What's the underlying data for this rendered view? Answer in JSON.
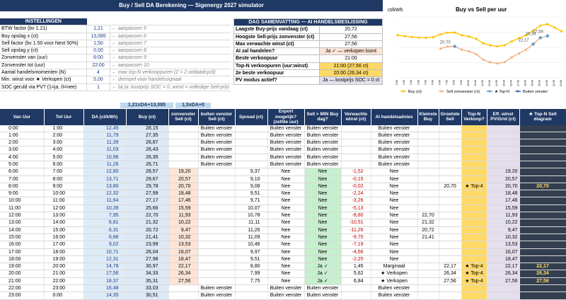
{
  "title": "Buy / Sell DA Berekening — Sigenergy 2027 simulator",
  "settings": {
    "header": "INSTELLINGEN",
    "rows": [
      {
        "label": "BTW factor (bv 1.21)",
        "value": "1,21",
        "note": "← aanpassen 5"
      },
      {
        "label": "Buy opslag x (ct)",
        "value": "13,085",
        "note": "← aanpassen 6"
      },
      {
        "label": "Sell factor (bv 1.50 voor Next 50%)",
        "value": "1,50",
        "note": "← aanpassen 7"
      },
      {
        "label": "Sell opslag y (ct)",
        "value": "0,00",
        "note": "← aanpassen 8"
      },
      {
        "label": "Zonvenster van (uur)",
        "value": "6:00",
        "note": "← aanpassen 9"
      },
      {
        "label": "Zonvenster tot (uur)",
        "value": "22:00",
        "note": "← aanpassen 10"
      },
      {
        "label": "Aantal handelsmomenten (N)",
        "value": "4",
        "note": "← max top-N verkooppuren (2 = 2 ontlaadcycli)"
      },
      {
        "label": "Min. winst voor ★ Verkopen (ct)",
        "value": "5,00",
        "note": "← drempel voor handelssignaal"
      },
      {
        "label": "SOC geruld via PV? (1=ja, 0=nee)",
        "value": "1",
        "note": "← bij ja: kostprijs SOC = 0, winst = volledige Sell-prijs"
      }
    ]
  },
  "summary": {
    "header": "DAG SAMENVATTING — AI HANDELSBESLISSING",
    "rows": [
      {
        "label": "Laagste Buy-prijs vandaag (ct)",
        "value": "20,72"
      },
      {
        "label": "Hoogste Sell-prijs zonvenster (ct)",
        "value": "27,56"
      },
      {
        "label": "Max verwachte winst (ct)",
        "value": "27,56"
      },
      {
        "label": "AI zal handelen?",
        "value": "Ja ✓ — verkopen loont"
      },
      {
        "label": "Beste verkoopuur",
        "value": "21:00"
      },
      {
        "label": "Top-N verkoopuren (uur:winst)",
        "value": "21:00 (27,56 ct)"
      },
      {
        "label": "2e beste verkoopuur",
        "value": "20:00 (26,34 ct)"
      },
      {
        "label": "PV modus actief?",
        "value": "Ja — kostprijs SOC = 0 ct"
      }
    ]
  },
  "subheaders": {
    "da": "1,21xDA+13,085",
    "sell": "1,5xDA+0"
  },
  "columns": [
    "Van Uur",
    "Tot Uur",
    "DA (ct/kWh)",
    "Buy (ct)",
    "zonvenster Sell (ct)",
    "buiten venster Sell (ct)",
    "Spread (ct)",
    "Export mogelijk? (zelfde uur)",
    "Sell > MIN Buy dag?",
    "Verwachte winst (ct)",
    "AI handelsadvies",
    "Kleinste Buy",
    "Grootste Sell",
    "Top-N Verkoop?",
    "Eff. winst PV/Grid (ct)",
    "★ Top-N Sell diagram"
  ],
  "rows": [
    [
      "0:00",
      "1:00",
      "12,45",
      "28,15",
      "",
      "Buiten venster",
      "",
      "Buiten venster",
      "Buiten venster",
      "",
      "Buiten venster",
      "",
      "",
      "",
      "",
      ""
    ],
    [
      "1:00",
      "2:00",
      "11,79",
      "27,35",
      "",
      "Buiten venster",
      "",
      "Buiten venster",
      "Buiten venster",
      "",
      "Buiten venster",
      "",
      "",
      "",
      "",
      ""
    ],
    [
      "2:00",
      "3:00",
      "11,39",
      "26,87",
      "",
      "Buiten venster",
      "",
      "Buiten venster",
      "Buiten venster",
      "",
      "Buiten venster",
      "",
      "",
      "",
      "",
      ""
    ],
    [
      "3:00",
      "4:00",
      "11,03",
      "26,43",
      "",
      "Buiten venster",
      "",
      "Buiten venster",
      "Buiten venster",
      "",
      "Buiten venster",
      "",
      "",
      "",
      "",
      ""
    ],
    [
      "4:00",
      "5:00",
      "10,96",
      "26,35",
      "",
      "Buiten venster",
      "",
      "Buiten venster",
      "Buiten venster",
      "",
      "Buiten venster",
      "",
      "",
      "",
      "",
      ""
    ],
    [
      "5:00",
      "6:00",
      "11,26",
      "26,71",
      "",
      "Buiten venster",
      "",
      "Buiten venster",
      "Buiten venster",
      "",
      "Buiten venster",
      "",
      "",
      "",
      "",
      ""
    ],
    [
      "6:00",
      "7:00",
      "12,80",
      "28,57",
      "19,20",
      "",
      "9,37",
      "Nee",
      "Nee",
      "-1,52",
      "Nee",
      "",
      "",
      "",
      "19,20",
      ""
    ],
    [
      "7:00",
      "8:00",
      "13,71",
      "29,67",
      "20,57",
      "",
      "9,10",
      "Nee",
      "Nee",
      "-0,15",
      "Nee",
      "",
      "",
      "",
      "20,57",
      ""
    ],
    [
      "8:00",
      "9:00",
      "13,80",
      "29,78",
      "20,70",
      "",
      "9,08",
      "Nee",
      "Nee",
      "-0,02",
      "Nee",
      "",
      "20,70",
      "★ Top-4",
      "20,70",
      "20,70"
    ],
    [
      "9:00",
      "10:00",
      "12,32",
      "27,99",
      "18,48",
      "",
      "9,51",
      "Nee",
      "Nee",
      "-2,24",
      "Nee",
      "",
      "",
      "",
      "18,48",
      ""
    ],
    [
      "10:00",
      "11:00",
      "11,64",
      "27,17",
      "17,46",
      "",
      "9,71",
      "Nee",
      "Nee",
      "-3,26",
      "Nee",
      "",
      "",
      "",
      "17,46",
      ""
    ],
    [
      "11:00",
      "12:00",
      "10,39",
      "25,66",
      "15,59",
      "",
      "10,07",
      "Nee",
      "Nee",
      "-5,13",
      "Nee",
      "",
      "",
      "",
      "15,59",
      ""
    ],
    [
      "12:00",
      "13:00",
      "7,95",
      "22,70",
      "11,93",
      "",
      "10,78",
      "Nee",
      "Nee",
      "-8,80",
      "Nee",
      "22,70",
      "",
      "",
      "11,93",
      ""
    ],
    [
      "13:00",
      "14:00",
      "6,81",
      "21,32",
      "10,22",
      "",
      "11,11",
      "Nee",
      "Nee",
      "-10,51",
      "Nee",
      "21,32",
      "",
      "",
      "10,22",
      ""
    ],
    [
      "14:00",
      "15:00",
      "6,31",
      "20,72",
      "9,47",
      "",
      "11,26",
      "Nee",
      "Nee",
      "-11,26",
      "Nee",
      "20,72",
      "",
      "",
      "9,47",
      ""
    ],
    [
      "15:00",
      "16:00",
      "6,88",
      "21,41",
      "10,32",
      "",
      "11,09",
      "Nee",
      "Nee",
      "-9,70",
      "Nee",
      "21,41",
      "",
      "",
      "10,32",
      ""
    ],
    [
      "16:00",
      "17:00",
      "9,02",
      "23,99",
      "13,53",
      "",
      "10,46",
      "Nee",
      "Nee",
      "-7,19",
      "Nee",
      "",
      "",
      "",
      "13,53",
      ""
    ],
    [
      "17:00",
      "18:00",
      "10,71",
      "26,04",
      "16,07",
      "",
      "9,97",
      "Nee",
      "Nee",
      "-4,66",
      "Nee",
      "",
      "",
      "",
      "16,07",
      ""
    ],
    [
      "18:00",
      "19:00",
      "12,31",
      "27,98",
      "18,47",
      "",
      "9,51",
      "Nee",
      "Nee",
      "-2,25",
      "Nee",
      "",
      "",
      "",
      "18,47",
      ""
    ],
    [
      "19:00",
      "20:00",
      "14,78",
      "30,97",
      "22,17",
      "",
      "8,80",
      "Nee",
      "Ja ✓",
      "1,45",
      "Marginaal",
      "",
      "22,17",
      "★ Top-4",
      "22,17",
      "22,17"
    ],
    [
      "20:00",
      "21:00",
      "17,56",
      "34,33",
      "26,34",
      "",
      "7,99",
      "Nee",
      "Ja ✓",
      "5,62",
      "★ Verkopen",
      "",
      "26,34",
      "★ Top-4",
      "26,34",
      "26,34"
    ],
    [
      "21:00",
      "22:00",
      "18,37",
      "35,31",
      "27,56",
      "",
      "7,75",
      "Nee",
      "Ja ✓",
      "6,84",
      "★ Verkopen",
      "",
      "27,56",
      "★ Top-4",
      "27,56",
      "27,56"
    ],
    [
      "22:00",
      "23:00",
      "16,48",
      "33,03",
      "",
      "Buiten venster",
      "",
      "Buiten venster",
      "Buiten venster",
      "",
      "Buiten venster",
      "",
      "",
      "",
      "",
      ""
    ],
    [
      "23:00",
      "0:00",
      "14,35",
      "30,51",
      "",
      "Buiten venster",
      "",
      "Buiten venster",
      "Buiten venster",
      "",
      "Buiten venster",
      "",
      "",
      "",
      "",
      ""
    ]
  ],
  "chart": {
    "title": "Buy vs Sell per uur",
    "ylabel": "ct/kWh",
    "legend": [
      "Buy (ct)",
      "Sell zonvenster (ct)",
      "★ Top-N",
      "Buiten venster"
    ],
    "colors": {
      "buy": "#ffc000",
      "sell": "#f4b183",
      "topn": "#5b9bd5",
      "bui": "#4472c4"
    },
    "labels": [
      "20,70",
      "22,17",
      "26,34",
      "27,56"
    ]
  },
  "chart_data": {
    "type": "line",
    "title": "Buy vs Sell per uur",
    "ylabel": "ct/kWh",
    "x": [
      "0:00",
      "1:00",
      "2:00",
      "3:00",
      "4:00",
      "5:00",
      "6:00",
      "7:00",
      "8:00",
      "9:00",
      "10:00",
      "11:00",
      "12:00",
      "13:00",
      "14:00",
      "15:00",
      "16:00",
      "17:00",
      "18:00",
      "19:00",
      "20:00",
      "21:00",
      "22:00",
      "23:00"
    ],
    "series": [
      {
        "name": "Buy (ct)",
        "values": [
          28.15,
          27.35,
          26.87,
          26.43,
          26.35,
          26.71,
          28.57,
          29.67,
          29.78,
          27.99,
          27.17,
          25.66,
          22.7,
          21.32,
          20.72,
          21.41,
          23.99,
          26.04,
          27.98,
          30.97,
          34.33,
          35.31,
          33.03,
          30.51
        ]
      },
      {
        "name": "Sell zonvenster (ct)",
        "values": [
          null,
          null,
          null,
          null,
          null,
          null,
          19.2,
          20.57,
          20.7,
          18.48,
          17.46,
          15.59,
          11.93,
          10.22,
          9.47,
          10.32,
          13.53,
          16.07,
          18.47,
          22.17,
          26.34,
          27.56,
          null,
          null
        ]
      },
      {
        "name": "★ Top-N",
        "values": [
          null,
          null,
          null,
          null,
          null,
          null,
          null,
          null,
          20.7,
          null,
          null,
          null,
          null,
          null,
          null,
          null,
          null,
          null,
          null,
          22.17,
          26.34,
          27.56,
          null,
          null
        ]
      }
    ]
  }
}
